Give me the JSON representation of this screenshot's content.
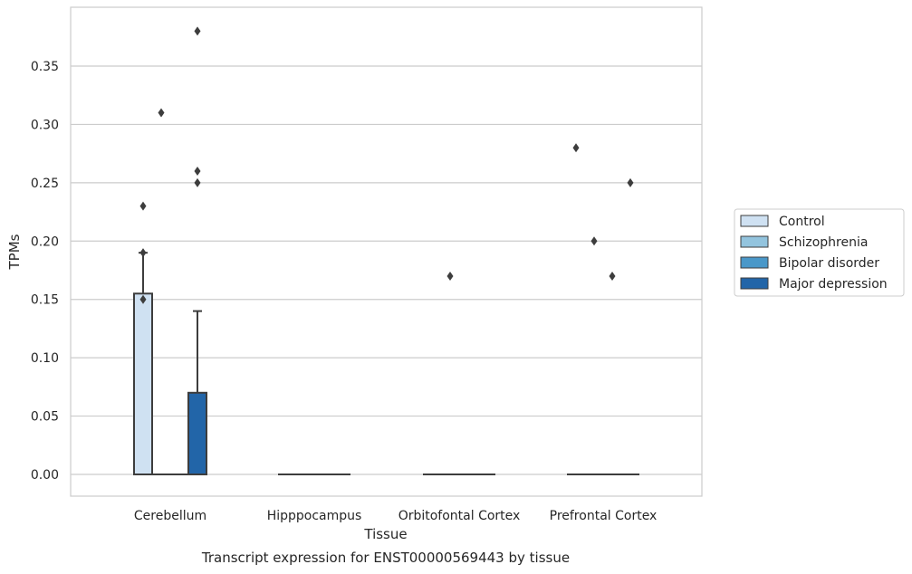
{
  "chart_data": {
    "type": "box",
    "caption": "Transcript expression for ENST00000569443 by tissue",
    "xlabel": "Tissue",
    "ylabel": "TPMs",
    "ylim": [
      -0.018,
      0.398
    ],
    "yticks": [
      0.0,
      0.05,
      0.1,
      0.15,
      0.2,
      0.25,
      0.3,
      0.35
    ],
    "ytick_labels": [
      "0.00",
      "0.05",
      "0.10",
      "0.15",
      "0.20",
      "0.25",
      "0.30",
      "0.35"
    ],
    "grid": true,
    "legend_position": "right",
    "categories": [
      "Cerebellum",
      "Hipppocampus",
      "Orbitofontal Cortex",
      "Prefrontal Cortex"
    ],
    "series": [
      {
        "name": "Control",
        "color": "#cfe1f2",
        "boxes": [
          {
            "q1": 0.0,
            "median": 0.0,
            "q3": 0.155,
            "whisker_low": 0.0,
            "whisker_high": 0.19,
            "outliers": [
              0.15,
              0.19,
              0.23
            ]
          },
          {
            "q1": 0.0,
            "median": 0.0,
            "q3": 0.0,
            "whisker_low": 0.0,
            "whisker_high": 0.0,
            "outliers": []
          },
          {
            "q1": 0.0,
            "median": 0.0,
            "q3": 0.0,
            "whisker_low": 0.0,
            "whisker_high": 0.0,
            "outliers": []
          },
          {
            "q1": 0.0,
            "median": 0.0,
            "q3": 0.0,
            "whisker_low": 0.0,
            "whisker_high": 0.0,
            "outliers": [
              0.28
            ]
          }
        ]
      },
      {
        "name": "Schizophrenia",
        "color": "#93c4de",
        "boxes": [
          {
            "q1": 0.0,
            "median": 0.0,
            "q3": 0.0,
            "whisker_low": 0.0,
            "whisker_high": 0.0,
            "outliers": [
              0.31
            ]
          },
          {
            "q1": 0.0,
            "median": 0.0,
            "q3": 0.0,
            "whisker_low": 0.0,
            "whisker_high": 0.0,
            "outliers": []
          },
          {
            "q1": 0.0,
            "median": 0.0,
            "q3": 0.0,
            "whisker_low": 0.0,
            "whisker_high": 0.0,
            "outliers": [
              0.17
            ]
          },
          {
            "q1": 0.0,
            "median": 0.0,
            "q3": 0.0,
            "whisker_low": 0.0,
            "whisker_high": 0.0,
            "outliers": [
              0.2
            ]
          }
        ]
      },
      {
        "name": "Bipolar disorder",
        "color": "#4a98c9",
        "boxes": [
          {
            "q1": 0.0,
            "median": 0.0,
            "q3": 0.0,
            "whisker_low": 0.0,
            "whisker_high": 0.0,
            "outliers": []
          },
          {
            "q1": 0.0,
            "median": 0.0,
            "q3": 0.0,
            "whisker_low": 0.0,
            "whisker_high": 0.0,
            "outliers": []
          },
          {
            "q1": 0.0,
            "median": 0.0,
            "q3": 0.0,
            "whisker_low": 0.0,
            "whisker_high": 0.0,
            "outliers": []
          },
          {
            "q1": 0.0,
            "median": 0.0,
            "q3": 0.0,
            "whisker_low": 0.0,
            "whisker_high": 0.0,
            "outliers": [
              0.17
            ]
          }
        ]
      },
      {
        "name": "Major depression",
        "color": "#2265a8",
        "boxes": [
          {
            "q1": 0.0,
            "median": 0.0,
            "q3": 0.07,
            "whisker_low": 0.0,
            "whisker_high": 0.14,
            "outliers": [
              0.25,
              0.26,
              0.38
            ]
          },
          {
            "q1": 0.0,
            "median": 0.0,
            "q3": 0.0,
            "whisker_low": 0.0,
            "whisker_high": 0.0,
            "outliers": []
          },
          {
            "q1": 0.0,
            "median": 0.0,
            "q3": 0.0,
            "whisker_low": 0.0,
            "whisker_high": 0.0,
            "outliers": []
          },
          {
            "q1": 0.0,
            "median": 0.0,
            "q3": 0.0,
            "whisker_low": 0.0,
            "whisker_high": 0.0,
            "outliers": [
              0.25
            ]
          }
        ]
      }
    ]
  }
}
